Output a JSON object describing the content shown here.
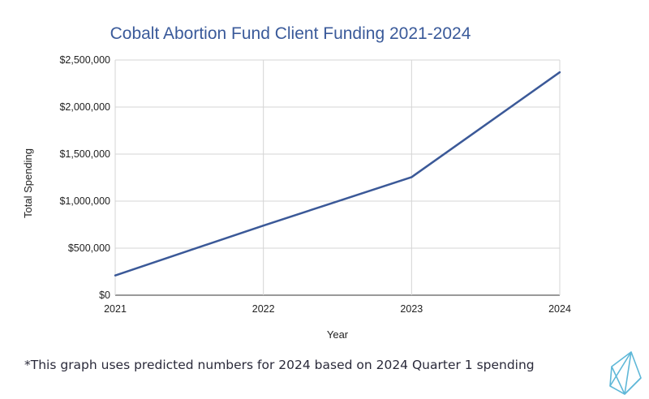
{
  "chart_data": {
    "type": "line",
    "title": "Cobalt Abortion Fund Client Funding 2021-2024",
    "xlabel": "Year",
    "ylabel": "Total Spending",
    "categories": [
      "2021",
      "2022",
      "2023",
      "2024"
    ],
    "series": [
      {
        "values": [
          210000,
          740000,
          1255000,
          2370000
        ]
      }
    ],
    "ylim": [
      0,
      2500000
    ],
    "yticks": [
      0,
      500000,
      1000000,
      1500000,
      2000000,
      2500000
    ],
    "ytick_labels": [
      "$0",
      "$500,000",
      "$1,000,000",
      "$1,500,000",
      "$2,000,000",
      "$2,500,000"
    ],
    "grid": true,
    "line_color": "#3b5998"
  },
  "footnote": "*This graph uses predicted numbers for 2024 based on 2024 Quarter 1 spending",
  "logo": {
    "icon": "crystal-logo-icon",
    "color": "#5fb8d8"
  }
}
